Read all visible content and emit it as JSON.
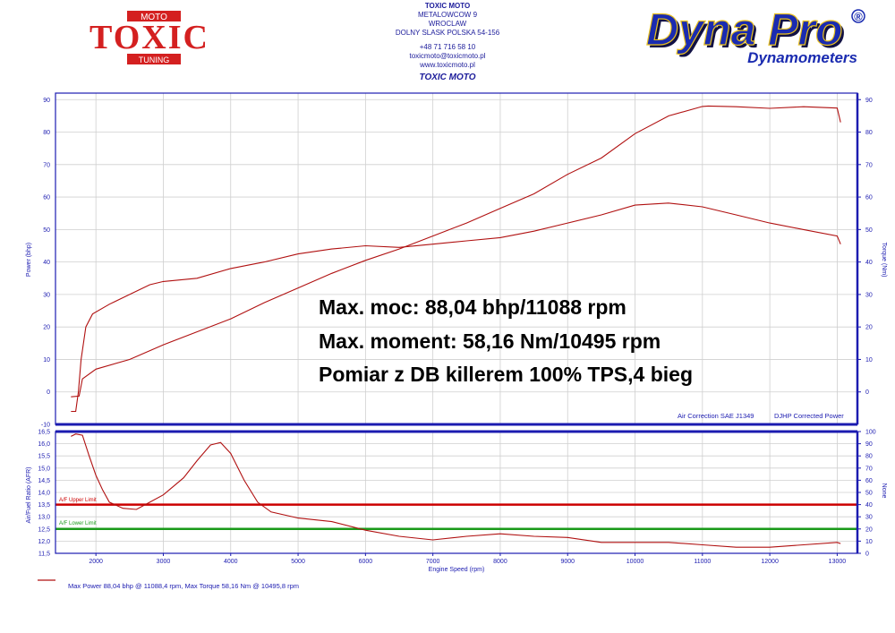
{
  "header": {
    "company": "TOXIC MOTO",
    "address1": "METALOWCOW 9",
    "address2": "WROCLAW",
    "address3": "DOLNY SLASK POLSKA 54-156",
    "phone": "+48 71 716 58 10",
    "email": "toxicmoto@toxicmoto.pl",
    "website": "www.toxicmoto.pl",
    "chart_heading": "TOXIC MOTO"
  },
  "logos": {
    "toxic_top": "MOTO",
    "toxic_main": "TOXIC",
    "toxic_bottom": "TUNING",
    "dyna_main": "Dyna Pro",
    "dyna_reg": "®",
    "dyna_sub": "Dynamometers"
  },
  "callouts": [
    "Max. moc: 88,04 bhp/11088 rpm",
    "Max. moment: 58,16 Nm/10495 rpm",
    "Pomiar z DB killerem 100% TPS,4 bieg"
  ],
  "colors": {
    "frame_blue": "#1b1bb0",
    "curve_red": "#b01010",
    "upper_limit": "#cc0000",
    "lower_limit": "#1a9a1a",
    "grid": "#cfcfcf"
  },
  "chart_data": [
    {
      "type": "line",
      "name": "power-torque",
      "ylabel": "Power (bhp)",
      "ylabel_right": "Torque (Nm)",
      "xlim": [
        1400,
        13300
      ],
      "ylim": [
        -10,
        92
      ],
      "x_ticks": [
        2000,
        3000,
        4000,
        5000,
        6000,
        7000,
        8000,
        9000,
        10000,
        11000,
        12000,
        13000
      ],
      "y_ticks": [
        -10,
        0,
        10,
        20,
        30,
        40,
        50,
        60,
        70,
        80,
        90
      ],
      "y_ticks_right": [
        0,
        10,
        20,
        30,
        40,
        50,
        60,
        70,
        80,
        90
      ],
      "footer_left": "Air Correction SAE J1349",
      "footer_right": "DJHP Corrected Power",
      "grid": true,
      "series": [
        {
          "name": "Power",
          "x": [
            1630,
            1750,
            1800,
            2000,
            2500,
            3000,
            3500,
            4000,
            4500,
            5000,
            5500,
            6000,
            6500,
            7000,
            7500,
            8000,
            8500,
            9000,
            9500,
            10000,
            10500,
            11000,
            11088,
            11500,
            12000,
            12500,
            13000,
            13050
          ],
          "y": [
            -1.5,
            -1.3,
            4,
            7,
            10,
            14.5,
            18.5,
            22.5,
            27.5,
            32,
            36.5,
            40.5,
            44,
            48,
            52,
            56.5,
            61,
            67,
            72,
            79.5,
            85,
            87.9,
            88.04,
            87.8,
            87.3,
            87.8,
            87.4,
            83
          ]
        },
        {
          "name": "Torque",
          "x": [
            1630,
            1700,
            1740,
            1780,
            1850,
            1950,
            2200,
            2500,
            2800,
            3000,
            3500,
            4000,
            4500,
            5000,
            5500,
            6000,
            6500,
            7000,
            7500,
            8000,
            8500,
            9000,
            9500,
            10000,
            10495,
            11000,
            11500,
            12000,
            12500,
            13000,
            13050
          ],
          "y": [
            -6,
            -6,
            0,
            10,
            20,
            24,
            27,
            30,
            33,
            34,
            35,
            38,
            40,
            42.5,
            44,
            45,
            44.5,
            45.5,
            46.5,
            47.5,
            49.5,
            52,
            54.5,
            57.5,
            58.16,
            57,
            54.5,
            52,
            50,
            48,
            45.5
          ]
        }
      ]
    },
    {
      "type": "line",
      "name": "air-fuel-ratio",
      "xlabel": "Engine Speed (rpm)",
      "ylabel": "Air/Fuel Ratio (AFR)",
      "ylabel_right": "None",
      "xlim": [
        1400,
        13300
      ],
      "ylim": [
        11.5,
        16.5
      ],
      "x_ticks": [
        2000,
        3000,
        4000,
        5000,
        6000,
        7000,
        8000,
        9000,
        10000,
        11000,
        12000,
        13000
      ],
      "y_ticks": [
        11.5,
        12.0,
        12.5,
        13.0,
        13.5,
        14.0,
        14.5,
        15.0,
        15.5,
        16.0,
        16.5
      ],
      "y_tick_labels": [
        "11,5",
        "12,0",
        "12,5",
        "13,0",
        "13,5",
        "14,0",
        "14,5",
        "15,0",
        "15,5",
        "16,0",
        "16,5"
      ],
      "y_ticks_right": [
        0,
        10,
        20,
        30,
        40,
        50,
        60,
        70,
        80,
        90,
        100
      ],
      "grid": true,
      "limits": [
        {
          "label": "A/F Upper Limit",
          "value": 13.5
        },
        {
          "label": "A/F Lower Limit",
          "value": 12.5
        }
      ],
      "series": [
        {
          "name": "AFR",
          "x": [
            1630,
            1700,
            1800,
            1900,
            2000,
            2100,
            2200,
            2400,
            2600,
            2800,
            3000,
            3300,
            3500,
            3700,
            3850,
            4000,
            4200,
            4400,
            4600,
            5000,
            5500,
            6000,
            6500,
            7000,
            7500,
            8000,
            8500,
            9000,
            9500,
            10000,
            10500,
            11000,
            11500,
            12000,
            12500,
            13000,
            13050
          ],
          "y": [
            16.3,
            16.4,
            16.35,
            15.5,
            14.7,
            14.1,
            13.6,
            13.35,
            13.3,
            13.6,
            13.9,
            14.6,
            15.3,
            15.95,
            16.05,
            15.6,
            14.5,
            13.6,
            13.2,
            12.95,
            12.8,
            12.45,
            12.2,
            12.05,
            12.2,
            12.3,
            12.2,
            12.15,
            11.95,
            11.95,
            11.95,
            11.85,
            11.75,
            11.75,
            11.85,
            11.95,
            11.9
          ]
        }
      ]
    }
  ],
  "bottom_legend": "Max Power 88,04 bhp @ 11088,4 rpm, Max Torque 58,16 Nm @ 10495,8 rpm"
}
